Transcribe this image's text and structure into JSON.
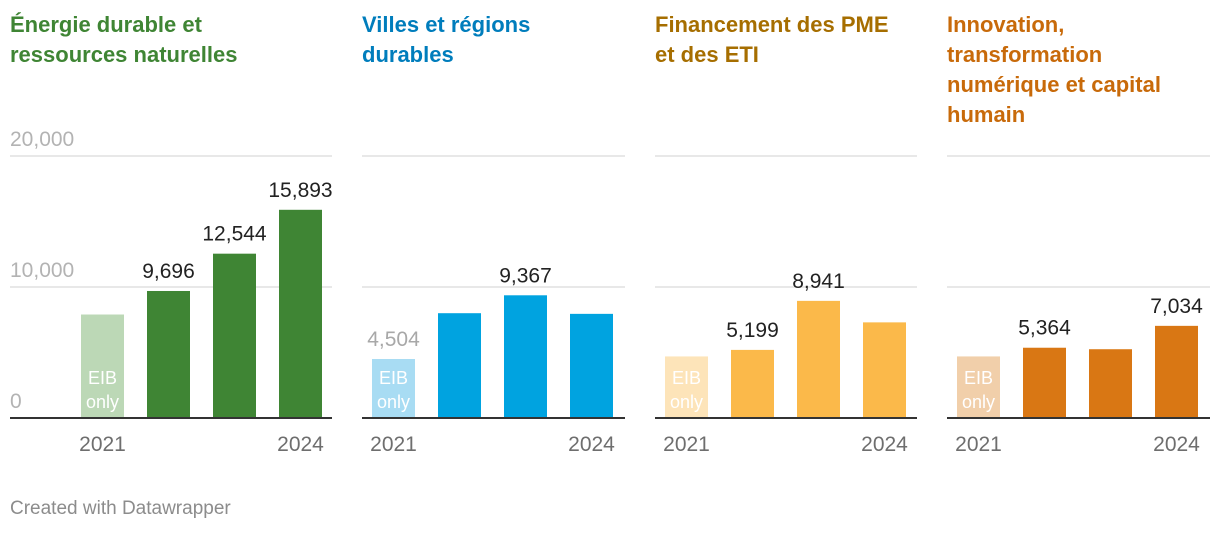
{
  "chart_data": [
    {
      "type": "bar",
      "title": "Énergie durable et\nressources naturelles",
      "color": "#3f8534",
      "light_color": "#bcd8b6",
      "show_y_labels": true,
      "y_ticks": [
        "0",
        "10,000",
        "20,000"
      ],
      "ylim": [
        0,
        20000
      ],
      "categories": [
        "2021",
        "2022",
        "2023",
        "2024"
      ],
      "x_tick_labels": [
        "2021",
        "",
        "",
        "2024"
      ],
      "values": [
        7900,
        9696,
        12544,
        15893
      ],
      "value_labels": [
        "",
        "9,696",
        "12,544",
        "15,893"
      ],
      "eib_only_bar": 0,
      "eib_only_label": [
        "EIB",
        "only"
      ]
    },
    {
      "type": "bar",
      "title": "Villes et régions\ndurables",
      "color": "#00a3e0",
      "light_color": "#a8dcf3",
      "show_y_labels": false,
      "y_ticks": [
        "0",
        "10,000",
        "20,000"
      ],
      "ylim": [
        0,
        20000
      ],
      "categories": [
        "2021",
        "2022",
        "2023",
        "2024"
      ],
      "x_tick_labels": [
        "2021",
        "",
        "",
        "2024"
      ],
      "values": [
        4504,
        8000,
        9367,
        7950
      ],
      "value_labels": [
        "4,504",
        "",
        "9,367",
        ""
      ],
      "eib_only_bar": 0,
      "eib_only_label": [
        "EIB",
        "only"
      ]
    },
    {
      "type": "bar",
      "title": "Financement des PME\net des ETI",
      "color": "#fbb94a",
      "light_color": "#fde4b9",
      "show_y_labels": false,
      "y_ticks": [
        "0",
        "10,000",
        "20,000"
      ],
      "ylim": [
        0,
        20000
      ],
      "categories": [
        "2021",
        "2022",
        "2023",
        "2024"
      ],
      "x_tick_labels": [
        "2021",
        "",
        "",
        "2024"
      ],
      "values": [
        4700,
        5199,
        8941,
        7300
      ],
      "value_labels": [
        "",
        "5,199",
        "8,941",
        ""
      ],
      "eib_only_bar": 0,
      "eib_only_label": [
        "EIB",
        "only"
      ]
    },
    {
      "type": "bar",
      "title": "Innovation,\ntransformation\nnumérique et capital\nhumain",
      "color": "#d97714",
      "light_color": "#f1cfaa",
      "show_y_labels": false,
      "y_ticks": [
        "0",
        "10,000",
        "20,000"
      ],
      "ylim": [
        0,
        20000
      ],
      "categories": [
        "2021",
        "2022",
        "2023",
        "2024"
      ],
      "x_tick_labels": [
        "2021",
        "",
        "",
        "2024"
      ],
      "values": [
        4700,
        5364,
        5250,
        7034
      ],
      "value_labels": [
        "",
        "5,364",
        "",
        "7,034"
      ],
      "eib_only_bar": 0,
      "eib_only_label": [
        "EIB",
        "only"
      ]
    }
  ],
  "title_colors": [
    "#3f8534",
    "#007dbc",
    "#a66e00",
    "#c86a0a"
  ],
  "footer": "Created with Datawrapper"
}
